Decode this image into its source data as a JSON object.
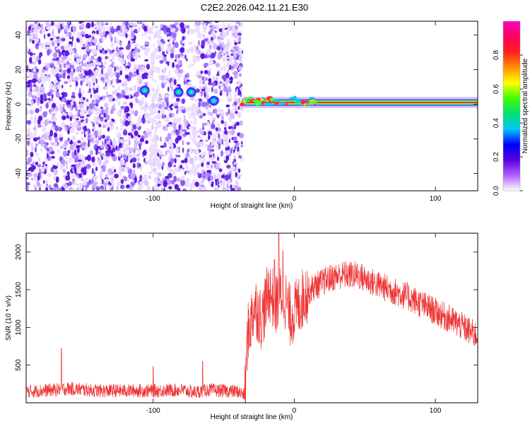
{
  "title": "C2E2.2026.042.11.21.E30",
  "chart_data": [
    {
      "type": "heatmap",
      "xlabel": "Height of straight line (km)",
      "ylabel": "Frequency (Hz)",
      "xlim": [
        -190,
        130
      ],
      "ylim": [
        -50,
        48
      ],
      "x_ticks": [
        -100,
        0,
        100
      ],
      "y_ticks": [
        -40,
        -20,
        0,
        20,
        40
      ],
      "noise_region_x": [
        -190,
        -37
      ],
      "signal_band": {
        "x": [
          -37,
          130
        ],
        "frequency_hz": 1
      },
      "blobs": [
        {
          "x": -106,
          "y": 8
        },
        {
          "x": -82,
          "y": 7
        },
        {
          "x": -73,
          "y": 7
        },
        {
          "x": -57,
          "y": 2
        }
      ],
      "colorbar": {
        "label": "Normalized spectral amplitude",
        "range": [
          0,
          1
        ],
        "ticks": [
          0.0,
          0.2,
          0.4,
          0.6,
          0.8
        ],
        "tick_labels": [
          "0.0",
          "0.2",
          "0.4",
          "0.6",
          "0.8"
        ],
        "colors": [
          "#ffffff",
          "#b060ff",
          "#5a00e0",
          "#0000ff",
          "#00c8ff",
          "#00e070",
          "#40ff00",
          "#ffff00",
          "#ff9000",
          "#ff2020",
          "#ff0060",
          "#ff00c0"
        ]
      }
    },
    {
      "type": "line",
      "xlabel": "Height of straight line (km)",
      "ylabel": "SNR (10 * v/v)",
      "xlim": [
        -190,
        130
      ],
      "ylim": [
        0,
        2250
      ],
      "x_ticks": [
        -100,
        0,
        100
      ],
      "y_ticks": [
        500,
        1000,
        1500,
        2000
      ],
      "color": "#ee3333",
      "envelope": {
        "x": [
          -190,
          -170,
          -160,
          -140,
          -100,
          -80,
          -70,
          -62,
          -40,
          -35,
          -33,
          -28,
          -23,
          -18,
          -13,
          -8,
          -3,
          2,
          8,
          15,
          25,
          35,
          45,
          60,
          80,
          100,
          115,
          130
        ],
        "y": [
          150,
          170,
          190,
          160,
          160,
          170,
          140,
          170,
          150,
          100,
          900,
          1300,
          1100,
          1500,
          1300,
          1500,
          1150,
          1250,
          1450,
          1550,
          1650,
          1700,
          1690,
          1560,
          1410,
          1210,
          1060,
          880
        ]
      },
      "spikes": [
        {
          "x": -165,
          "y": 720
        },
        {
          "x": -100,
          "y": 480
        },
        {
          "x": -65,
          "y": 550
        },
        {
          "x": -11,
          "y": 2250
        },
        {
          "x": -14,
          "y": 1900
        },
        {
          "x": -8,
          "y": 2020
        }
      ]
    }
  ]
}
